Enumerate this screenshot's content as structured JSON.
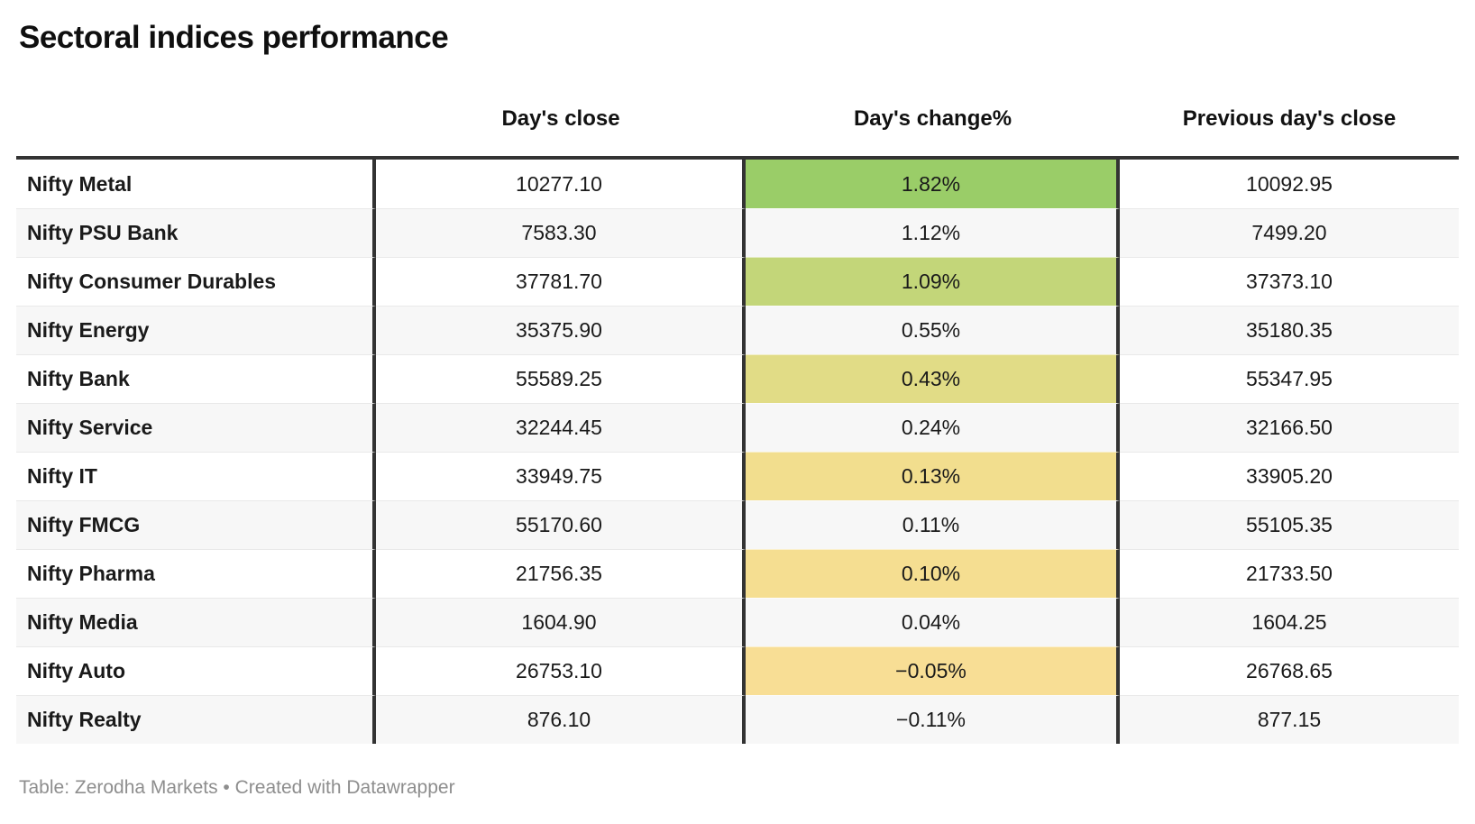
{
  "title": "Sectoral indices performance",
  "footer": "Table: Zerodha Markets • Created with Datawrapper",
  "chart_data": {
    "type": "table",
    "title": "Sectoral indices performance",
    "source": "Zerodha Markets",
    "tool": "Datawrapper",
    "heatmap_column": "Day's change%",
    "heatmap_range_pct": [
      -0.11,
      1.82
    ],
    "columns": [
      "",
      "Day's close",
      "Day's change%",
      "Previous day's close"
    ],
    "rows": [
      {
        "sector": "Nifty Metal",
        "close": "10277.10",
        "change": "1.82%",
        "change_pct": 1.82,
        "prev": "10092.95",
        "heat_color": "#9acd68"
      },
      {
        "sector": "Nifty PSU Bank",
        "close": "7583.30",
        "change": "1.12%",
        "change_pct": 1.12,
        "prev": "7499.20",
        "heat_color": "#c1d577"
      },
      {
        "sector": "Nifty Consumer Durables",
        "close": "37781.70",
        "change": "1.09%",
        "change_pct": 1.09,
        "prev": "37373.10",
        "heat_color": "#c3d679"
      },
      {
        "sector": "Nifty Energy",
        "close": "35375.90",
        "change": "0.55%",
        "change_pct": 0.55,
        "prev": "35180.35",
        "heat_color": "#dfdb85"
      },
      {
        "sector": "Nifty Bank",
        "close": "55589.25",
        "change": "0.43%",
        "change_pct": 0.43,
        "prev": "55347.95",
        "heat_color": "#e1dc86"
      },
      {
        "sector": "Nifty Service",
        "close": "32244.45",
        "change": "0.24%",
        "change_pct": 0.24,
        "prev": "32166.50",
        "heat_color": "#eedd8b"
      },
      {
        "sector": "Nifty IT",
        "close": "33949.75",
        "change": "0.13%",
        "change_pct": 0.13,
        "prev": "33905.20",
        "heat_color": "#f2de8e"
      },
      {
        "sector": "Nifty FMCG",
        "close": "55170.60",
        "change": "0.11%",
        "change_pct": 0.11,
        "prev": "55105.35",
        "heat_color": "#f4de90"
      },
      {
        "sector": "Nifty Pharma",
        "close": "21756.35",
        "change": "0.10%",
        "change_pct": 0.1,
        "prev": "21733.50",
        "heat_color": "#f5de91"
      },
      {
        "sector": "Nifty Media",
        "close": "1604.90",
        "change": "0.04%",
        "change_pct": 0.04,
        "prev": "1604.25",
        "heat_color": "#f6de93"
      },
      {
        "sector": "Nifty Auto",
        "close": "26753.10",
        "change": "−0.05%",
        "change_pct": -0.05,
        "prev": "26768.65",
        "heat_color": "#f8de95"
      },
      {
        "sector": "Nifty Realty",
        "close": "876.10",
        "change": "−0.11%",
        "change_pct": -0.11,
        "prev": "877.15",
        "heat_color": "#f9df98"
      }
    ]
  }
}
